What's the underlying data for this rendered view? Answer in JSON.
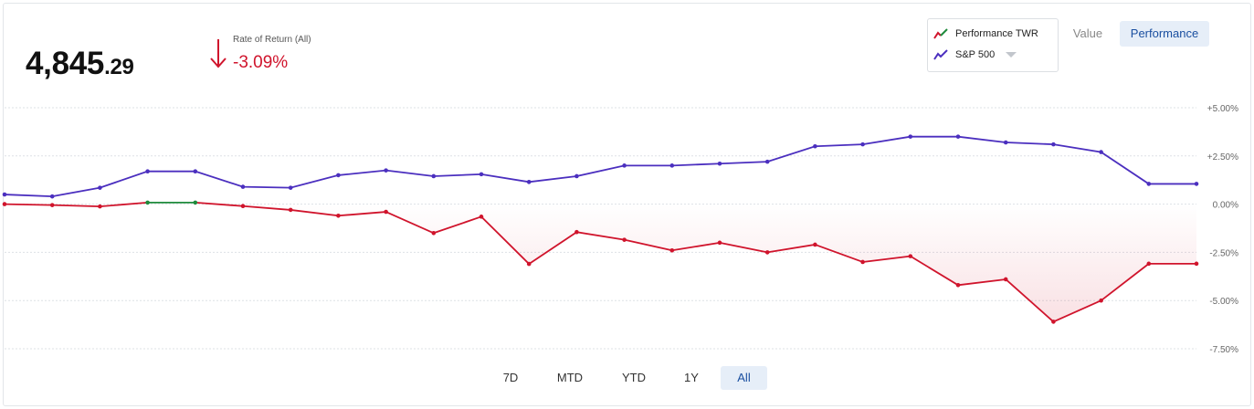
{
  "summary": {
    "value_int": "4,845",
    "value_dec": ".29",
    "rate_label": "Rate of Return (All)",
    "rate_value": "-3.09%",
    "direction_icon": "arrow-down-icon"
  },
  "legend": {
    "items": [
      {
        "label": "Performance TWR",
        "icon": "line-chart-icon",
        "colors": [
          "#d0142c",
          "#1e8a3c"
        ]
      },
      {
        "label": "S&P 500",
        "icon": "line-chart-icon",
        "colors": [
          "#4b2fbf"
        ],
        "dropdown": true
      }
    ]
  },
  "view_toggle": {
    "value_label": "Value",
    "performance_label": "Performance",
    "selected": "Performance"
  },
  "ranges": {
    "items": [
      "7D",
      "MTD",
      "YTD",
      "1Y",
      "All"
    ],
    "selected": "All"
  },
  "colors": {
    "negative": "#d0142c",
    "positive": "#1e8a3c",
    "benchmark": "#4b2fbf",
    "accent_bg": "#e6eef8",
    "accent_text": "#1a4fa0"
  },
  "chart_data": {
    "type": "line",
    "ylim": [
      -7.5,
      5.0
    ],
    "yticks": [
      5.0,
      2.5,
      0.0,
      -2.5,
      -5.0,
      -7.5
    ],
    "ytick_labels": [
      "+5.00%",
      "+2.50%",
      "0.00%",
      "-2.50%",
      "-5.00%",
      "-7.50%"
    ],
    "grid": true,
    "legend_position": "top-right",
    "series": [
      {
        "name": "Performance TWR",
        "color_negative": "#d0142c",
        "color_positive": "#1e8a3c",
        "fill_below_zero": true,
        "values": [
          0.0,
          -0.05,
          -0.12,
          0.08,
          0.08,
          -0.1,
          -0.3,
          -0.6,
          -0.4,
          -1.5,
          -0.65,
          -3.1,
          -1.45,
          -1.85,
          -2.4,
          -2.0,
          -2.5,
          -2.1,
          -3.0,
          -2.7,
          -4.2,
          -3.9,
          -6.1,
          -5.0,
          -3.09,
          -3.09
        ]
      },
      {
        "name": "S&P 500",
        "color": "#4b2fbf",
        "values": [
          0.5,
          0.4,
          0.85,
          1.7,
          1.7,
          0.9,
          0.85,
          1.5,
          1.75,
          1.45,
          1.55,
          1.15,
          1.45,
          2.0,
          2.0,
          2.1,
          2.2,
          3.0,
          3.1,
          3.5,
          3.5,
          3.2,
          3.1,
          2.7,
          1.05,
          1.05
        ]
      }
    ]
  }
}
